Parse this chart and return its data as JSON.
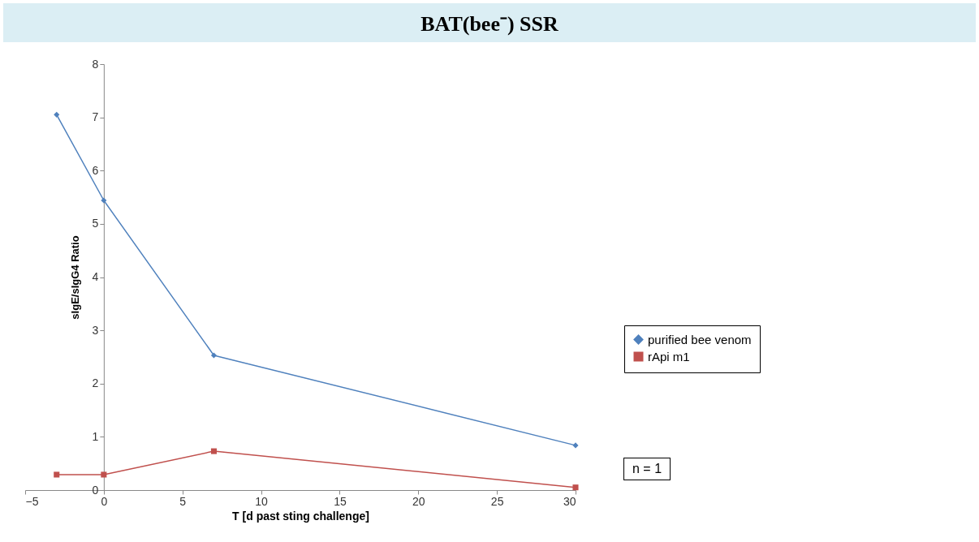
{
  "chart_data": {
    "type": "line",
    "title": "BAT(bee⁻) SSR",
    "xlabel": "T [d past sting challenge]",
    "ylabel": "sIgE/sIgG4 Ratio",
    "x": [
      -3,
      0,
      7,
      30
    ],
    "series": [
      {
        "name": "purified bee venom",
        "color": "#4f81bd",
        "marker": "diamond",
        "values": [
          7.05,
          5.44,
          2.53,
          0.84
        ]
      },
      {
        "name": "rApi m1",
        "color": "#c0504d",
        "marker": "square",
        "values": [
          0.29,
          0.29,
          0.73,
          0.05
        ]
      }
    ],
    "xlim": [
      -5,
      30
    ],
    "xticks": [
      -5,
      0,
      5,
      10,
      15,
      20,
      25,
      30
    ],
    "ylim": [
      0,
      8
    ],
    "yticks": [
      0,
      1,
      2,
      3,
      4,
      5,
      6,
      7,
      8
    ],
    "grid": false,
    "legend": "right",
    "annotations": [
      "n = 1"
    ]
  }
}
